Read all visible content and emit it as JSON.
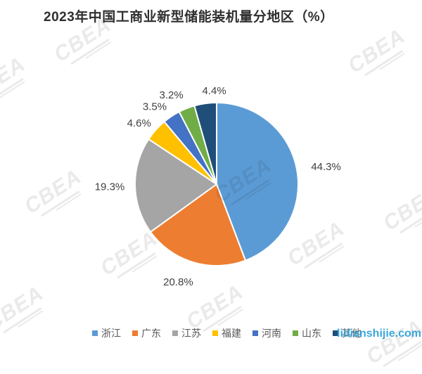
{
  "title": "2023年中国工商业新型储能装机量分地区（%）",
  "watermarks": {
    "logo": "CBEA",
    "site": "lidianshijie.com"
  },
  "chart_data": {
    "type": "pie",
    "title": "2023年中国工商业新型储能装机量分地区（%）",
    "unit": "%",
    "legend_position": "bottom",
    "direction": "clockwise",
    "start_angle_deg": 0,
    "categories": [
      "浙江",
      "广东",
      "江苏",
      "福建",
      "河南",
      "山东",
      "其他"
    ],
    "values": [
      44.3,
      20.8,
      19.3,
      4.6,
      3.5,
      3.2,
      4.4
    ],
    "labels": [
      "44.3%",
      "20.8%",
      "19.3%",
      "4.6%",
      "3.5%",
      "3.2%",
      "4.4%"
    ],
    "colors": [
      "#5B9BD5",
      "#ED7D31",
      "#A5A5A5",
      "#FFC000",
      "#4472C4",
      "#70AD47",
      "#1F4E79"
    ]
  }
}
